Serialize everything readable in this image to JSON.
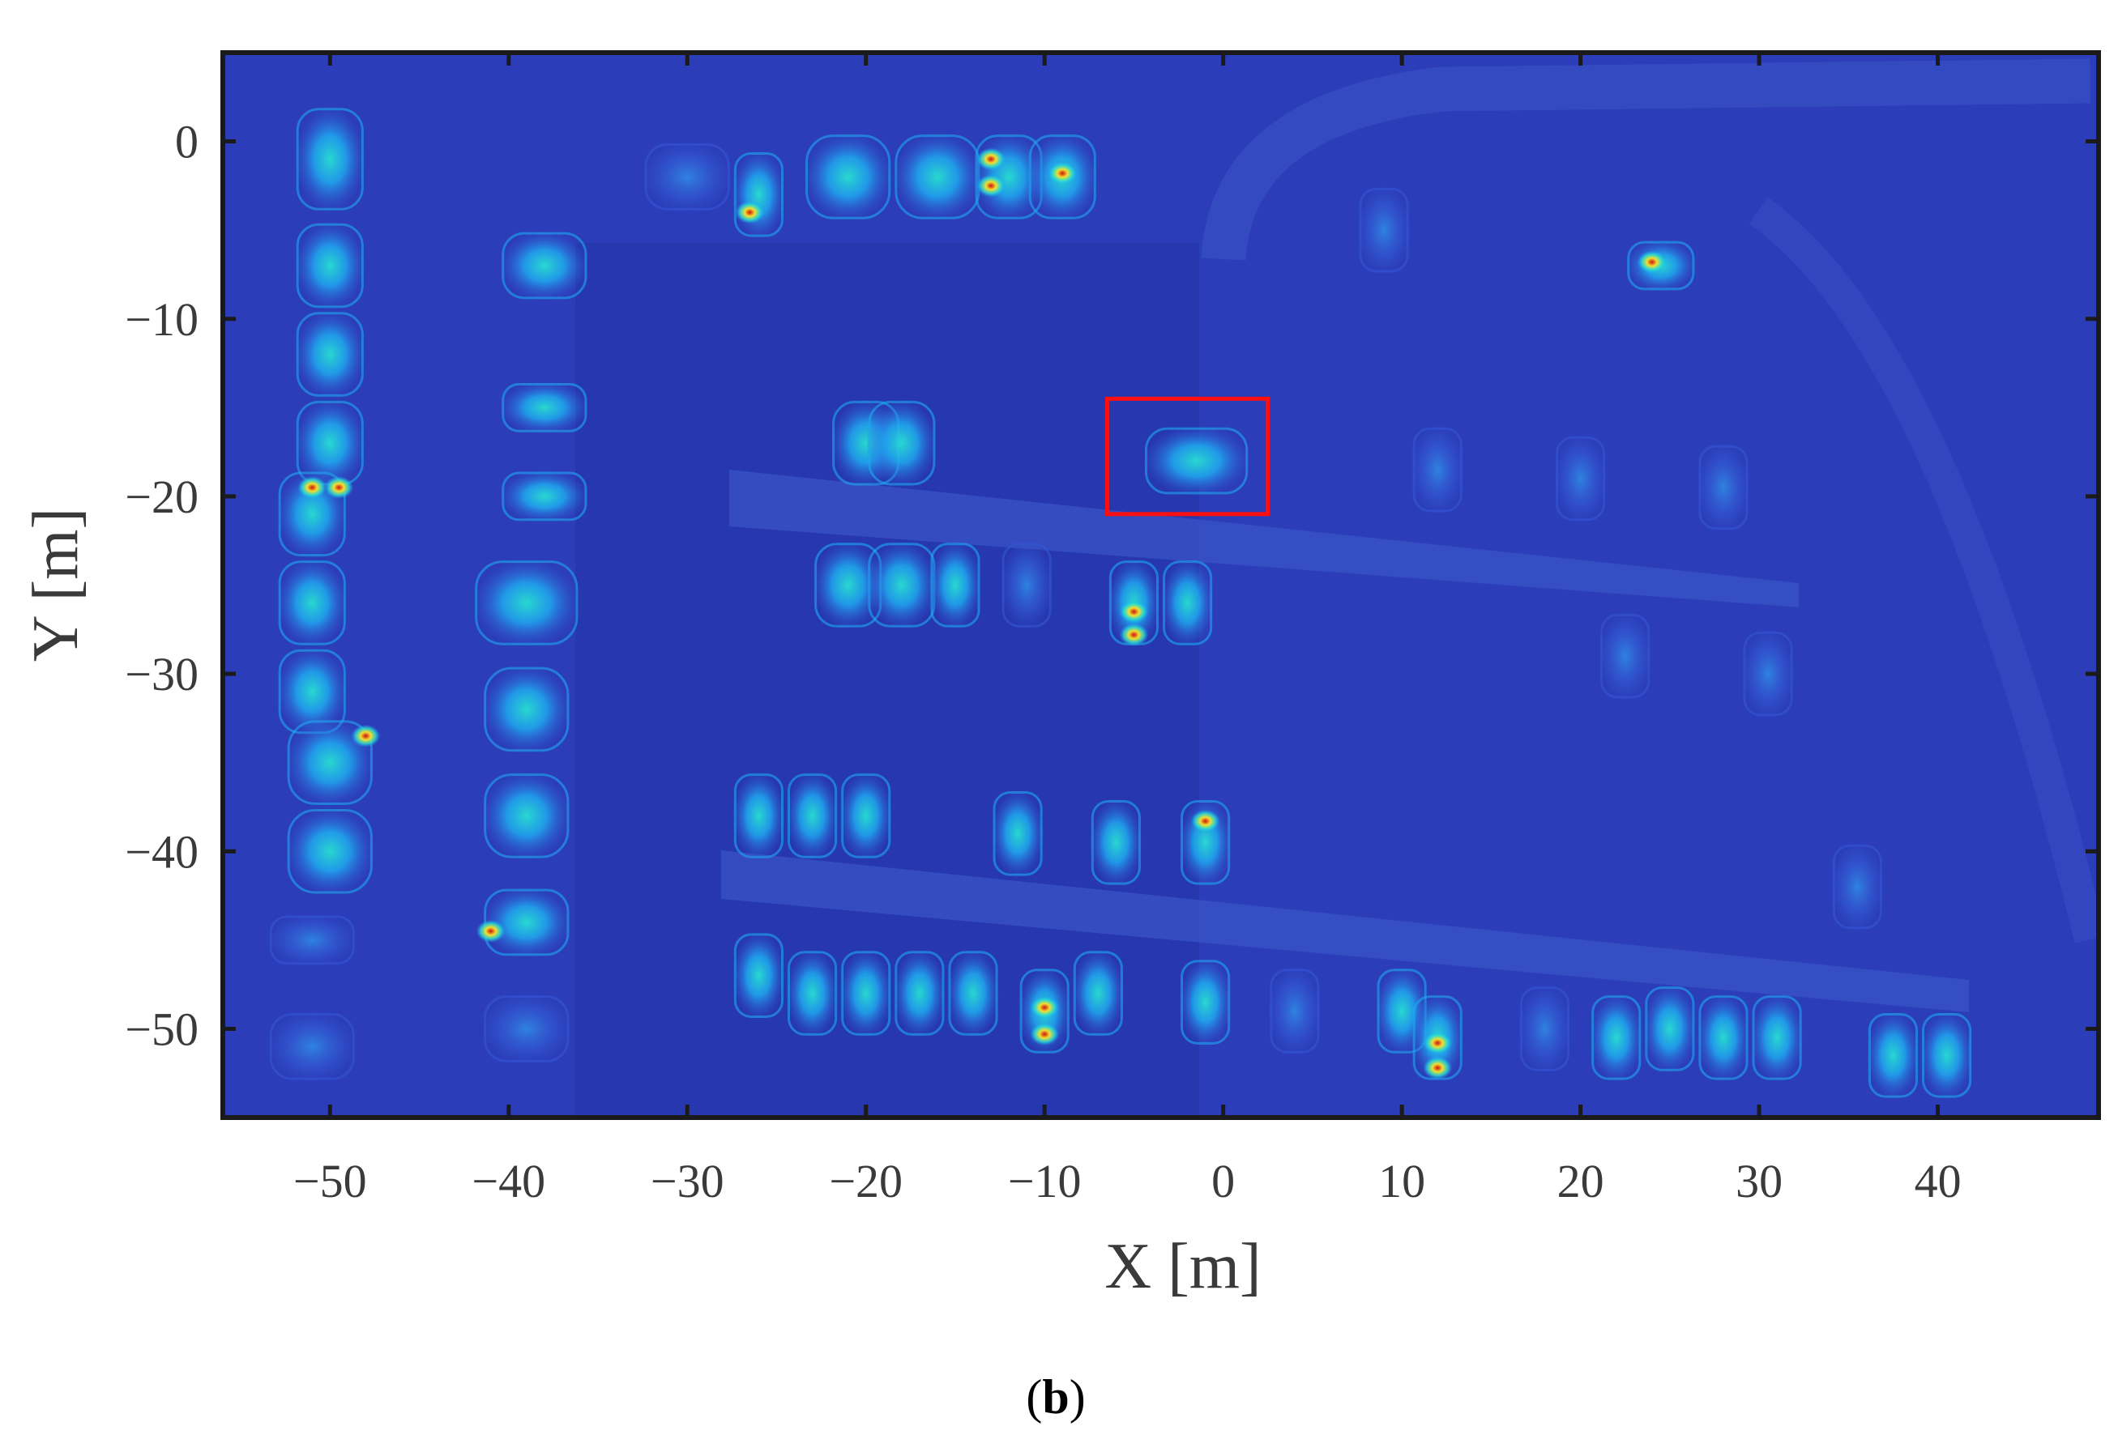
{
  "figure": {
    "caption": {
      "open": "(",
      "letter": "b",
      "close": ")"
    },
    "x_axis": {
      "title": "X [m]",
      "ticks": [
        {
          "value": -50,
          "label": "−50"
        },
        {
          "value": -40,
          "label": "−40"
        },
        {
          "value": -30,
          "label": "−30"
        },
        {
          "value": -20,
          "label": "−20"
        },
        {
          "value": -10,
          "label": "−10"
        },
        {
          "value": 0,
          "label": "0"
        },
        {
          "value": 10,
          "label": "10"
        },
        {
          "value": 20,
          "label": "20"
        },
        {
          "value": 30,
          "label": "30"
        },
        {
          "value": 40,
          "label": "40"
        }
      ],
      "range": [
        -56,
        49
      ]
    },
    "y_axis": {
      "title": "Y [m]",
      "ticks": [
        {
          "value": 0,
          "label": "0"
        },
        {
          "value": -10,
          "label": "−10"
        },
        {
          "value": -20,
          "label": "−20"
        },
        {
          "value": -30,
          "label": "−30"
        },
        {
          "value": -40,
          "label": "−40"
        },
        {
          "value": -50,
          "label": "−50"
        }
      ],
      "range": [
        -55,
        5
      ]
    },
    "colors": {
      "background": "#2b3db8",
      "ground_dark": "#2233a8",
      "low": "#3557d6",
      "mid": "#1fa9f0",
      "high": "#28e0d0",
      "peak": "#f0e030",
      "hot": "#d01010",
      "highlight_box": "#ff1010"
    },
    "highlight_box": {
      "x_range": [
        -6.5,
        2.5
      ],
      "y_range": [
        -21,
        -14.5
      ]
    },
    "vehicles": [
      {
        "x": -50,
        "y": -1,
        "w": 4,
        "h": 6,
        "level": "mid"
      },
      {
        "x": -50,
        "y": -7,
        "w": 4,
        "h": 5,
        "level": "mid"
      },
      {
        "x": -50,
        "y": -12,
        "w": 4,
        "h": 5,
        "level": "mid"
      },
      {
        "x": -50,
        "y": -17,
        "w": 4,
        "h": 5,
        "level": "mid"
      },
      {
        "x": -51,
        "y": -21,
        "w": 4,
        "h": 5,
        "level": "mid"
      },
      {
        "x": -51,
        "y": -26,
        "w": 4,
        "h": 5,
        "level": "mid"
      },
      {
        "x": -51,
        "y": -31,
        "w": 4,
        "h": 5,
        "level": "mid"
      },
      {
        "x": -50,
        "y": -35,
        "w": 5,
        "h": 5,
        "level": "mid"
      },
      {
        "x": -50,
        "y": -40,
        "w": 5,
        "h": 5,
        "level": "mid"
      },
      {
        "x": -51,
        "y": -45,
        "w": 5,
        "h": 3,
        "level": "low"
      },
      {
        "x": -51,
        "y": -51,
        "w": 5,
        "h": 4,
        "level": "low"
      },
      {
        "x": -38,
        "y": -7,
        "w": 5,
        "h": 4,
        "level": "mid"
      },
      {
        "x": -38,
        "y": -15,
        "w": 5,
        "h": 3,
        "level": "mid"
      },
      {
        "x": -38,
        "y": -20,
        "w": 5,
        "h": 3,
        "level": "mid"
      },
      {
        "x": -39,
        "y": -26,
        "w": 6,
        "h": 5,
        "level": "mid"
      },
      {
        "x": -39,
        "y": -32,
        "w": 5,
        "h": 5,
        "level": "mid"
      },
      {
        "x": -39,
        "y": -38,
        "w": 5,
        "h": 5,
        "level": "mid"
      },
      {
        "x": -39,
        "y": -44,
        "w": 5,
        "h": 4,
        "level": "mid"
      },
      {
        "x": -39,
        "y": -50,
        "w": 5,
        "h": 4,
        "level": "low"
      },
      {
        "x": -30,
        "y": -2,
        "w": 5,
        "h": 4,
        "level": "low"
      },
      {
        "x": -26,
        "y": -3,
        "w": 3,
        "h": 5,
        "level": "mid"
      },
      {
        "x": -21,
        "y": -2,
        "w": 5,
        "h": 5,
        "level": "mid"
      },
      {
        "x": -16,
        "y": -2,
        "w": 5,
        "h": 5,
        "level": "mid"
      },
      {
        "x": -12,
        "y": -2,
        "w": 4,
        "h": 5,
        "level": "mid"
      },
      {
        "x": -9,
        "y": -2,
        "w": 4,
        "h": 5,
        "level": "mid"
      },
      {
        "x": 9,
        "y": -5,
        "w": 3,
        "h": 5,
        "level": "low"
      },
      {
        "x": 24.5,
        "y": -7,
        "w": 4,
        "h": 3,
        "level": "mid"
      },
      {
        "x": -20,
        "y": -17,
        "w": 4,
        "h": 5,
        "level": "mid"
      },
      {
        "x": -18,
        "y": -17,
        "w": 4,
        "h": 5,
        "level": "mid"
      },
      {
        "x": -1.5,
        "y": -18,
        "w": 6,
        "h": 4,
        "level": "mid"
      },
      {
        "x": 12,
        "y": -18.5,
        "w": 3,
        "h": 5,
        "level": "low"
      },
      {
        "x": 20,
        "y": -19,
        "w": 3,
        "h": 5,
        "level": "low"
      },
      {
        "x": 28,
        "y": -19.5,
        "w": 3,
        "h": 5,
        "level": "low"
      },
      {
        "x": -21,
        "y": -25,
        "w": 4,
        "h": 5,
        "level": "mid"
      },
      {
        "x": -18,
        "y": -25,
        "w": 4,
        "h": 5,
        "level": "mid"
      },
      {
        "x": -15,
        "y": -25,
        "w": 3,
        "h": 5,
        "level": "mid"
      },
      {
        "x": -11,
        "y": -25,
        "w": 3,
        "h": 5,
        "level": "low"
      },
      {
        "x": -5,
        "y": -26,
        "w": 3,
        "h": 5,
        "level": "mid"
      },
      {
        "x": -2,
        "y": -26,
        "w": 3,
        "h": 5,
        "level": "mid"
      },
      {
        "x": 22.5,
        "y": -29,
        "w": 3,
        "h": 5,
        "level": "low"
      },
      {
        "x": 30.5,
        "y": -30,
        "w": 3,
        "h": 5,
        "level": "low"
      },
      {
        "x": -26,
        "y": -38,
        "w": 3,
        "h": 5,
        "level": "mid"
      },
      {
        "x": -23,
        "y": -38,
        "w": 3,
        "h": 5,
        "level": "mid"
      },
      {
        "x": -20,
        "y": -38,
        "w": 3,
        "h": 5,
        "level": "mid"
      },
      {
        "x": -11.5,
        "y": -39,
        "w": 3,
        "h": 5,
        "level": "mid"
      },
      {
        "x": -6,
        "y": -39.5,
        "w": 3,
        "h": 5,
        "level": "mid"
      },
      {
        "x": -1,
        "y": -39.5,
        "w": 3,
        "h": 5,
        "level": "mid"
      },
      {
        "x": 35.5,
        "y": -42,
        "w": 3,
        "h": 5,
        "level": "low"
      },
      {
        "x": -26,
        "y": -47,
        "w": 3,
        "h": 5,
        "level": "mid"
      },
      {
        "x": -23,
        "y": -48,
        "w": 3,
        "h": 5,
        "level": "mid"
      },
      {
        "x": -20,
        "y": -48,
        "w": 3,
        "h": 5,
        "level": "mid"
      },
      {
        "x": -17,
        "y": -48,
        "w": 3,
        "h": 5,
        "level": "mid"
      },
      {
        "x": -14,
        "y": -48,
        "w": 3,
        "h": 5,
        "level": "mid"
      },
      {
        "x": -10,
        "y": -49,
        "w": 3,
        "h": 5,
        "level": "mid"
      },
      {
        "x": -7,
        "y": -48,
        "w": 3,
        "h": 5,
        "level": "mid"
      },
      {
        "x": -1,
        "y": -48.5,
        "w": 3,
        "h": 5,
        "level": "mid"
      },
      {
        "x": 4,
        "y": -49,
        "w": 3,
        "h": 5,
        "level": "low"
      },
      {
        "x": 10,
        "y": -49,
        "w": 3,
        "h": 5,
        "level": "mid"
      },
      {
        "x": 12,
        "y": -50.5,
        "w": 3,
        "h": 5,
        "level": "mid"
      },
      {
        "x": 18,
        "y": -50,
        "w": 3,
        "h": 5,
        "level": "low"
      },
      {
        "x": 22,
        "y": -50.5,
        "w": 3,
        "h": 5,
        "level": "mid"
      },
      {
        "x": 25,
        "y": -50,
        "w": 3,
        "h": 5,
        "level": "mid"
      },
      {
        "x": 28,
        "y": -50.5,
        "w": 3,
        "h": 5,
        "level": "mid"
      },
      {
        "x": 31,
        "y": -50.5,
        "w": 3,
        "h": 5,
        "level": "mid"
      },
      {
        "x": 37.5,
        "y": -51.5,
        "w": 3,
        "h": 5,
        "level": "mid"
      },
      {
        "x": 40.5,
        "y": -51.5,
        "w": 3,
        "h": 5,
        "level": "mid"
      }
    ],
    "hotspots": [
      {
        "x": -51,
        "y": -19.5
      },
      {
        "x": -49.5,
        "y": -19.5
      },
      {
        "x": -48,
        "y": -33.5
      },
      {
        "x": -13,
        "y": -1
      },
      {
        "x": -13,
        "y": -2.5
      },
      {
        "x": -9,
        "y": -1.8
      },
      {
        "x": -26.5,
        "y": -4
      },
      {
        "x": -5,
        "y": -26.5
      },
      {
        "x": -5,
        "y": -27.8
      },
      {
        "x": -1,
        "y": -38.3
      },
      {
        "x": -10,
        "y": -48.8
      },
      {
        "x": -10,
        "y": -50.3
      },
      {
        "x": 12,
        "y": -50.8
      },
      {
        "x": 12,
        "y": -52.2
      },
      {
        "x": -41,
        "y": -44.5
      },
      {
        "x": 24,
        "y": -6.8
      }
    ]
  }
}
